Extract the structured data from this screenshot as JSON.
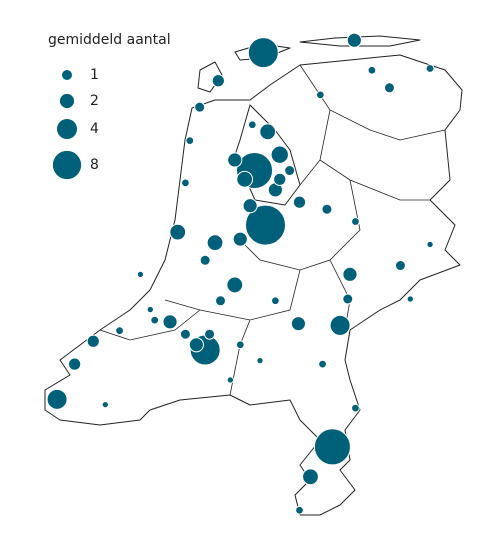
{
  "chart_data": {
    "type": "bubble-map",
    "legend_title": "gemiddeld aantal",
    "legend_values": [
      1,
      2,
      4,
      8
    ],
    "color": "#00607a",
    "lon": [
      5.39,
      5.31,
      5.41,
      4.86,
      6.02,
      3.51,
      6.09,
      5.54,
      4.61,
      4.95,
      5.13,
      5.82,
      6.22,
      5.43,
      5.22,
      5.18,
      5.71,
      4.78,
      4.54,
      3.84,
      3.67,
      4.98,
      4.81,
      6.18,
      5.72,
      5.97,
      6.16,
      6.54,
      6.64,
      6.91,
      5.72,
      6.23,
      5.93,
      4.68,
      4.72,
      5.29,
      5.91,
      6.38,
      6.23,
      6.91,
      6.73,
      5.36,
      5.18,
      4.4,
      4.08,
      3.95,
      4.27,
      5.09,
      5.5,
      5.0,
      4.36,
      4.86,
      5.54,
      5.27,
      5.63,
      5.13,
      5.5,
      4.68,
      4.9
    ],
    "lat": [
      53.4,
      52.73,
      52.42,
      51.71,
      51.16,
      51.43,
      51.85,
      52.82,
      52.38,
      52.32,
      52.08,
      50.99,
      53.47,
      52.95,
      52.68,
      52.34,
      51.86,
      51.74,
      51.87,
      51.76,
      51.63,
      53.24,
      53.09,
      52.14,
      52.55,
      52.51,
      52.0,
      53.2,
      52.19,
      53.31,
      50.8,
      51.38,
      51.63,
      52.66,
      52.9,
      52.99,
      53.16,
      53.3,
      52.44,
      52.31,
      52.0,
      51.65,
      51.74,
      51.88,
      51.82,
      51.4,
      52.14,
      51.54,
      51.99,
      51.99,
      51.94,
      52.22,
      52.68,
      52.53,
      52.73,
      52.79,
      52.62,
      51.8,
      51.8
    ],
    "values": [
      9,
      13,
      16,
      9,
      13,
      4,
      4,
      3,
      2.5,
      2.5,
      2.5,
      2.5,
      2,
      2.5,
      2.5,
      2,
      2,
      2,
      2,
      1.5,
      1.5,
      1.5,
      1,
      2,
      1.5,
      1,
      1,
      1,
      1,
      0.6,
      0.6,
      0.6,
      0.6,
      0.6,
      0.6,
      0.6,
      0.6,
      0.6,
      0.6,
      0.4,
      0.4,
      0.4,
      0.6,
      0.6,
      0.6,
      0.4,
      0.4,
      0.4,
      0.6,
      1,
      0.4,
      1,
      1.5,
      2,
      1,
      2,
      2,
      1,
      1
    ]
  }
}
